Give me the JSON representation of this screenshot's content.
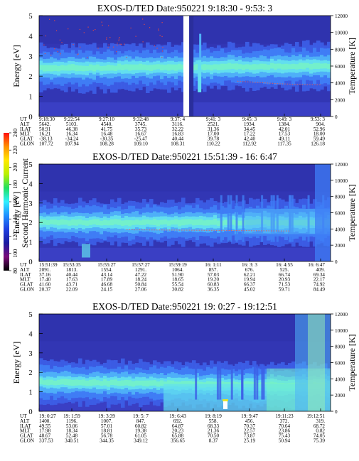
{
  "chart_data": [
    {
      "type": "heatmap",
      "title_prefix": "EXOS-D/TED",
      "title_date": "Date:950221",
      "title_time": "9:18:30 - 9:53: 3",
      "ylabel": "Energy [eV]",
      "y2label": "Temperature [K]",
      "ylim": [
        0,
        5
      ],
      "y2lim": [
        0,
        12000
      ],
      "yticks": [
        "0",
        "1",
        "2",
        "3",
        "4",
        "5"
      ],
      "y2ticks": [
        "0",
        "2000",
        "4000",
        "6000",
        "8000",
        "10000",
        "12000"
      ],
      "data_gap": [
        0.495,
        0.515
      ],
      "band_center_left": 2.4,
      "band_center_right": 2.5,
      "temperature_curve": [
        [
          0.68,
          4200
        ],
        [
          0.75,
          4050
        ],
        [
          0.82,
          3900
        ],
        [
          0.9,
          3800
        ],
        [
          0.97,
          3750
        ]
      ],
      "table": {
        "labels": [
          "UT",
          "ALT",
          "ILAT",
          "MLT",
          "GLAT",
          "GLON"
        ],
        "columns": [
          [
            "9:18:30",
            "5642.",
            "50.91",
            "16.21",
            "-38.13",
            "107.72"
          ],
          [
            "9:22:54",
            "5103.",
            "46.38",
            "16.34",
            "-34.24",
            "107.94"
          ],
          [
            "9:27:10",
            "4540.",
            "41.75",
            "16.48",
            "-30.35",
            "108.28"
          ],
          [
            "9:32:48",
            "3745.",
            "35.73",
            "16.67",
            "-25.47",
            "109.10"
          ],
          [
            "9:37: 4",
            "3116.",
            "32.22",
            "16.83",
            "40.44",
            "108.31"
          ],
          [
            "9:41: 3",
            "2521.",
            "31.36",
            "17.00",
            "39.78",
            "110.22"
          ],
          [
            "9:45: 3",
            "1934.",
            "34.45",
            "17.22",
            "42.40",
            "112.92"
          ],
          [
            "9:49: 3",
            "1384.",
            "42.01",
            "17.53",
            "49.11",
            "117.35"
          ],
          [
            "9:53: 3",
            "904.",
            "52.96",
            "18.00",
            "59.49",
            "126.18"
          ]
        ]
      }
    },
    {
      "type": "heatmap",
      "title_prefix": "EXOS-D/TED",
      "title_date": "Date:950221",
      "title_time": "15:51:39 - 16: 6:47",
      "ylabel": "Energy [eV]",
      "y2label": "Temperature [K]",
      "ylim": [
        0,
        5
      ],
      "y2lim": [
        0,
        12000
      ],
      "yticks": [
        "0",
        "1",
        "2",
        "3",
        "4",
        "5"
      ],
      "y2ticks": [
        "0",
        "2000",
        "4000",
        "6000",
        "8000",
        "10000",
        "12000"
      ],
      "band_center_left": 2.0,
      "band_center_right": 2.0,
      "temperature_curve": [
        [
          0.3,
          3900
        ],
        [
          0.5,
          3850
        ],
        [
          0.7,
          3800
        ],
        [
          0.86,
          3750
        ]
      ],
      "table": {
        "labels": [
          "UT",
          "ALT",
          "ILAT",
          "MLT",
          "GLAT",
          "GLON"
        ],
        "columns": [
          [
            "15:51:39",
            "2091.",
            "37.16",
            "17.40",
            "41.60",
            "20.37"
          ],
          [
            "15:53:35",
            "1813.",
            "40.44",
            "17.63",
            "43.71",
            "22.09"
          ],
          [
            "15:55:27",
            "1554.",
            "43.14",
            "17.89",
            "46.68",
            "24.15"
          ],
          [
            "15:57:27",
            "1291.",
            "47.22",
            "18.24",
            "50.84",
            "27.06"
          ],
          [
            "15:59:19",
            "1064.",
            "51.90",
            "18.65",
            "55.54",
            "30.82"
          ],
          [
            "16: 1:11",
            "857.",
            "57.03",
            "19.20",
            "60.83",
            "36.35"
          ],
          [
            "16: 3: 3",
            "676.",
            "62.21",
            "19.94",
            "66.37",
            "45.02"
          ],
          [
            "16: 4:55",
            "525.",
            "66.74",
            "20.93",
            "71.53",
            "59.71"
          ],
          [
            "16: 6:47",
            "409.",
            "69.34",
            "22.17",
            "74.92",
            "84.49"
          ]
        ]
      }
    },
    {
      "type": "heatmap",
      "title_prefix": "EXOS-D/TED",
      "title_date": "Date:950221",
      "title_time": "19: 0:27 - 19:12:51",
      "ylabel": "Energy [eV]",
      "y2label": "Temperature [K]",
      "ylim": [
        0,
        5
      ],
      "y2lim": [
        0,
        12000
      ],
      "yticks": [
        "0",
        "1",
        "2",
        "3",
        "4",
        "5"
      ],
      "y2ticks": [
        "0",
        "2000",
        "4000",
        "6000",
        "8000",
        "10000",
        "12000"
      ],
      "band_center_left": 1.5,
      "band_center_right": 1.3,
      "table": {
        "labels": [
          "UT",
          "ALT",
          "ILAT",
          "MLT",
          "GLAT",
          "GLON"
        ],
        "columns": [
          [
            "19: 0:27",
            "1400.",
            "49.55",
            "17.98",
            "48.67",
            "337.53"
          ],
          [
            "19: 1:59",
            "1196.",
            "53.06",
            "18.34",
            "52.48",
            "340.51"
          ],
          [
            "19: 3:39",
            "1007.",
            "57.01",
            "18.81",
            "56.78",
            "344.35"
          ],
          [
            "19: 5: 7",
            "847.",
            "60.82",
            "19.38",
            "61.05",
            "349.12"
          ],
          [
            "19: 6:43",
            "692.",
            "64.87",
            "20.23",
            "65.88",
            "356.65"
          ],
          [
            "19: 8:19",
            "558.",
            "68.33",
            "21.36",
            "70.50",
            "8.37"
          ],
          [
            "19: 9:47",
            "456.",
            "70.37",
            "22.57",
            "73.87",
            "25.19"
          ],
          [
            "19:11:23",
            "372.",
            "70.64",
            "23.86",
            "75.43",
            "50.94"
          ],
          [
            "19:12:51",
            "319.",
            "68.72",
            "0.82",
            "74.05",
            "75.39"
          ]
        ]
      }
    }
  ],
  "colorbar": {
    "label": "Second Harmonic Current",
    "ticks": [
      "80",
      "100",
      "120",
      "140",
      "160",
      "180",
      "200",
      "220",
      "240"
    ],
    "range": [
      80,
      240
    ],
    "colors": [
      "#000000",
      "#7a0a7a",
      "#1a1aa0",
      "#1f3fe0",
      "#1f8fff",
      "#2ff0ff",
      "#20e060",
      "#b8f000",
      "#ffe800",
      "#ff9000",
      "#ff1010"
    ]
  }
}
